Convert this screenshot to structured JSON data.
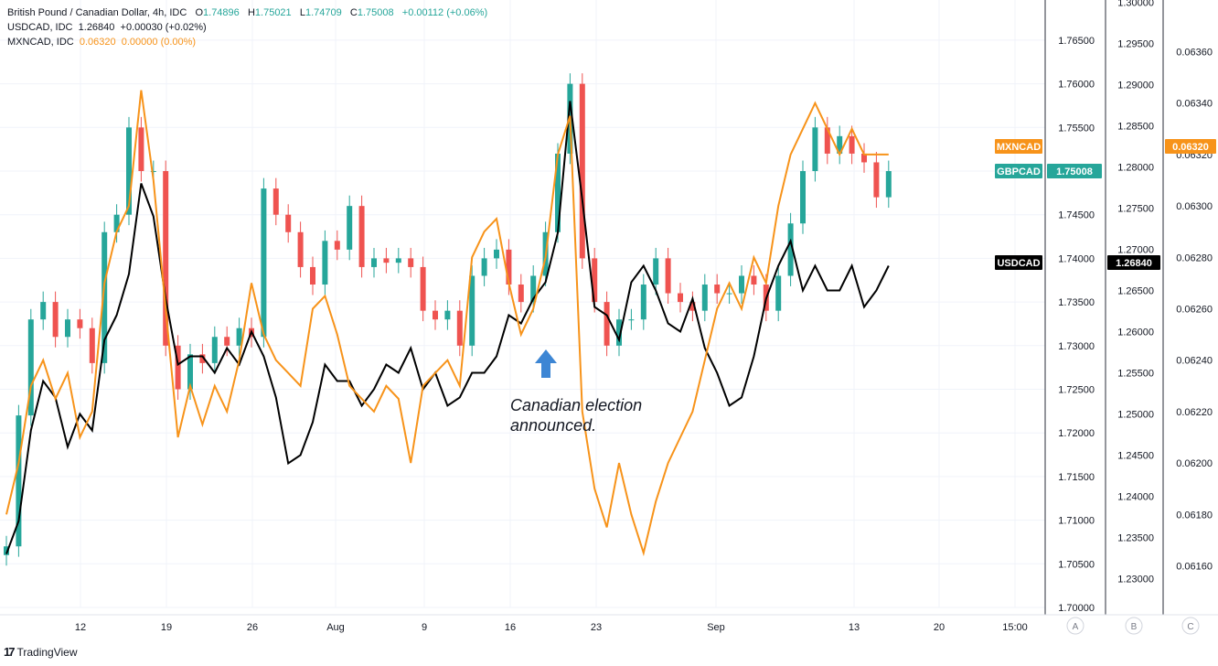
{
  "legend": {
    "main": {
      "symbol": "British Pound / Canadian Dollar, 4h, IDC",
      "o_label": "O",
      "o": "1.74896",
      "h_label": "H",
      "h": "1.75021",
      "l_label": "L",
      "l": "1.74709",
      "c_label": "C",
      "c": "1.75008",
      "chg": "+0.00112 (+0.06%)"
    },
    "usdcad": {
      "symbol": "USDCAD, IDC",
      "value": "1.26840",
      "chg": "+0.00030 (+0.02%)"
    },
    "mxncad": {
      "symbol": "MXNCAD, IDC",
      "value": "0.06320",
      "chg": "0.00000 (0.00%)"
    }
  },
  "footer": {
    "brand": "TradingView",
    "logo": "17"
  },
  "colors": {
    "up": "#26a69a",
    "down": "#ef5350",
    "usdcad": "#000000",
    "mxncad": "#f7931a",
    "arrow": "#3d86d4"
  },
  "chart_data": {
    "type": "line",
    "title": "British Pound / Canadian Dollar, 4h, IDC",
    "x_ticks": [
      "12",
      "19",
      "26",
      "Aug",
      "9",
      "16",
      "23",
      "Sep",
      "13",
      "20",
      "15:00"
    ],
    "axes": {
      "A": {
        "ticks": [
          "1.70000",
          "1.70500",
          "1.71000",
          "1.71500",
          "1.72000",
          "1.72500",
          "1.73000",
          "1.73500",
          "1.74000",
          "1.74500",
          "1.75000",
          "1.75500",
          "1.76000",
          "1.76500"
        ],
        "range": [
          1.6995,
          1.771
        ]
      },
      "B": {
        "ticks": [
          "1.23000",
          "1.23500",
          "1.24000",
          "1.24500",
          "1.25000",
          "1.25500",
          "1.26000",
          "1.26500",
          "1.27000",
          "1.27500",
          "1.28000",
          "1.28500",
          "1.29000",
          "1.29500",
          "1.30000"
        ],
        "range": [
          1.2255,
          1.3
        ]
      },
      "C": {
        "ticks": [
          "0.06160",
          "0.06180",
          "0.06200",
          "0.06220",
          "0.06240",
          "0.06260",
          "0.06280",
          "0.06300",
          "0.06320",
          "0.06340",
          "0.06360"
        ],
        "range": [
          0.06148,
          0.0637
        ]
      }
    },
    "scale_buttons": [
      "A",
      "B",
      "C"
    ],
    "series": [
      {
        "name": "GBPCAD",
        "kind": "candles",
        "axis": "A",
        "label_value": "1.75008",
        "dates": [
          "Jul 7",
          "Jul 8",
          "Jul 9",
          "Jul 10",
          "Jul 11",
          "Jul 12",
          "Jul 13",
          "Jul 14",
          "Jul 15",
          "Jul 16",
          "Jul 17",
          "Jul 18",
          "Jul 19",
          "Jul 20",
          "Jul 21",
          "Jul 22",
          "Jul 23",
          "Jul 24",
          "Jul 25",
          "Jul 26",
          "Jul 27",
          "Jul 28",
          "Jul 29",
          "Jul 30",
          "Jul 31",
          "Aug 1",
          "Aug 2",
          "Aug 3",
          "Aug 4",
          "Aug 5",
          "Aug 6",
          "Aug 7",
          "Aug 8",
          "Aug 9",
          "Aug 10",
          "Aug 11",
          "Aug 12",
          "Aug 13",
          "Aug 14",
          "Aug 15",
          "Aug 16",
          "Aug 17",
          "Aug 18",
          "Aug 19",
          "Aug 20",
          "Aug 21",
          "Aug 22",
          "Aug 23",
          "Aug 24",
          "Aug 25",
          "Aug 26",
          "Aug 27",
          "Aug 28",
          "Aug 29",
          "Aug 30",
          "Aug 31",
          "Sep 1",
          "Sep 2",
          "Sep 3",
          "Sep 4",
          "Sep 5",
          "Sep 6",
          "Sep 7",
          "Sep 8",
          "Sep 9",
          "Sep 10",
          "Sep 11",
          "Sep 12",
          "Sep 13",
          "Sep 14",
          "Sep 15",
          "Sep 16",
          "Sep 17"
        ],
        "values": [
          1.707,
          1.722,
          1.733,
          1.735,
          1.731,
          1.733,
          1.732,
          1.728,
          1.743,
          1.745,
          1.755,
          1.75,
          1.75,
          1.73,
          1.725,
          1.729,
          1.728,
          1.731,
          1.73,
          1.732,
          1.731,
          1.748,
          1.745,
          1.743,
          1.739,
          1.737,
          1.742,
          1.741,
          1.746,
          1.739,
          1.74,
          1.7395,
          1.74,
          1.739,
          1.734,
          1.733,
          1.734,
          1.73,
          1.738,
          1.74,
          1.741,
          1.737,
          1.735,
          1.738,
          1.743,
          1.752,
          1.76,
          1.74,
          1.735,
          1.73,
          1.733,
          1.733,
          1.737,
          1.74,
          1.736,
          1.735,
          1.734,
          1.737,
          1.736,
          1.736,
          1.738,
          1.737,
          1.734,
          1.738,
          1.744,
          1.75,
          1.755,
          1.752,
          1.754,
          1.752,
          1.751,
          1.747,
          1.75
        ]
      },
      {
        "name": "USDCAD",
        "kind": "line",
        "axis": "B",
        "label_value": "1.26840",
        "dates": [
          "Jul 7",
          "Jul 8",
          "Jul 9",
          "Jul 10",
          "Jul 11",
          "Jul 12",
          "Jul 13",
          "Jul 14",
          "Jul 15",
          "Jul 16",
          "Jul 17",
          "Jul 18",
          "Jul 19",
          "Jul 20",
          "Jul 21",
          "Jul 22",
          "Jul 23",
          "Jul 24",
          "Jul 25",
          "Jul 26",
          "Jul 27",
          "Jul 28",
          "Jul 29",
          "Jul 30",
          "Jul 31",
          "Aug 1",
          "Aug 2",
          "Aug 3",
          "Aug 4",
          "Aug 5",
          "Aug 6",
          "Aug 7",
          "Aug 8",
          "Aug 9",
          "Aug 10",
          "Aug 11",
          "Aug 12",
          "Aug 13",
          "Aug 14",
          "Aug 15",
          "Aug 16",
          "Aug 17",
          "Aug 18",
          "Aug 19",
          "Aug 20",
          "Aug 21",
          "Aug 22",
          "Aug 23",
          "Aug 24",
          "Aug 25",
          "Aug 26",
          "Aug 27",
          "Aug 28",
          "Aug 29",
          "Aug 30",
          "Aug 31",
          "Sep 1",
          "Sep 2",
          "Sep 3",
          "Sep 4",
          "Sep 5",
          "Sep 6",
          "Sep 7",
          "Sep 8",
          "Sep 9",
          "Sep 10",
          "Sep 11",
          "Sep 12",
          "Sep 13",
          "Sep 14",
          "Sep 15",
          "Sep 16",
          "Sep 17"
        ],
        "values": [
          1.233,
          1.237,
          1.248,
          1.254,
          1.252,
          1.246,
          1.25,
          1.248,
          1.259,
          1.262,
          1.267,
          1.278,
          1.274,
          1.264,
          1.256,
          1.257,
          1.257,
          1.255,
          1.258,
          1.256,
          1.26,
          1.257,
          1.252,
          1.244,
          1.245,
          1.249,
          1.256,
          1.254,
          1.254,
          1.251,
          1.253,
          1.256,
          1.255,
          1.258,
          1.253,
          1.255,
          1.251,
          1.252,
          1.255,
          1.255,
          1.257,
          1.262,
          1.261,
          1.264,
          1.266,
          1.272,
          1.288,
          1.276,
          1.263,
          1.262,
          1.259,
          1.266,
          1.268,
          1.265,
          1.261,
          1.26,
          1.264,
          1.258,
          1.255,
          1.251,
          1.252,
          1.257,
          1.264,
          1.268,
          1.271,
          1.265,
          1.268,
          1.265,
          1.265,
          1.268,
          1.263,
          1.265,
          1.268
        ]
      },
      {
        "name": "MXNCAD",
        "kind": "line",
        "axis": "C",
        "label_value": "0.06320",
        "dates": [
          "Jul 7",
          "Jul 8",
          "Jul 9",
          "Jul 10",
          "Jul 11",
          "Jul 12",
          "Jul 13",
          "Jul 14",
          "Jul 15",
          "Jul 16",
          "Jul 17",
          "Jul 18",
          "Jul 19",
          "Jul 20",
          "Jul 21",
          "Jul 22",
          "Jul 23",
          "Jul 24",
          "Jul 25",
          "Jul 26",
          "Jul 27",
          "Jul 28",
          "Jul 29",
          "Jul 30",
          "Jul 31",
          "Aug 1",
          "Aug 2",
          "Aug 3",
          "Aug 4",
          "Aug 5",
          "Aug 6",
          "Aug 7",
          "Aug 8",
          "Aug 9",
          "Aug 10",
          "Aug 11",
          "Aug 12",
          "Aug 13",
          "Aug 14",
          "Aug 15",
          "Aug 16",
          "Aug 17",
          "Aug 18",
          "Aug 19",
          "Aug 20",
          "Aug 21",
          "Aug 22",
          "Aug 23",
          "Aug 24",
          "Aug 25",
          "Aug 26",
          "Aug 27",
          "Aug 28",
          "Aug 29",
          "Aug 30",
          "Aug 31",
          "Sep 1",
          "Sep 2",
          "Sep 3",
          "Sep 4",
          "Sep 5",
          "Sep 6",
          "Sep 7",
          "Sep 8",
          "Sep 9",
          "Sep 10",
          "Sep 11",
          "Sep 12",
          "Sep 13",
          "Sep 14",
          "Sep 15",
          "Sep 16",
          "Sep 17"
        ],
        "values": [
          0.0618,
          0.062,
          0.0623,
          0.0624,
          0.06225,
          0.06235,
          0.0621,
          0.0622,
          0.0627,
          0.0629,
          0.063,
          0.06345,
          0.0631,
          0.0626,
          0.0621,
          0.0623,
          0.06215,
          0.0623,
          0.0622,
          0.0624,
          0.0627,
          0.0625,
          0.0624,
          0.06235,
          0.0623,
          0.0626,
          0.06265,
          0.0625,
          0.0623,
          0.06225,
          0.0622,
          0.0623,
          0.06225,
          0.062,
          0.0623,
          0.06235,
          0.0624,
          0.0623,
          0.0628,
          0.0629,
          0.06295,
          0.0627,
          0.0625,
          0.0626,
          0.0628,
          0.0632,
          0.06335,
          0.0622,
          0.0619,
          0.06175,
          0.062,
          0.0618,
          0.06165,
          0.06185,
          0.062,
          0.0621,
          0.0622,
          0.0624,
          0.0626,
          0.0627,
          0.0626,
          0.0628,
          0.0627,
          0.063,
          0.0632,
          0.0633,
          0.0634,
          0.0633,
          0.0632,
          0.0633,
          0.0632,
          0.0632,
          0.0632
        ]
      }
    ],
    "annotation": {
      "lines": [
        "Canadian election",
        "announced."
      ],
      "date": "Aug 18"
    }
  }
}
